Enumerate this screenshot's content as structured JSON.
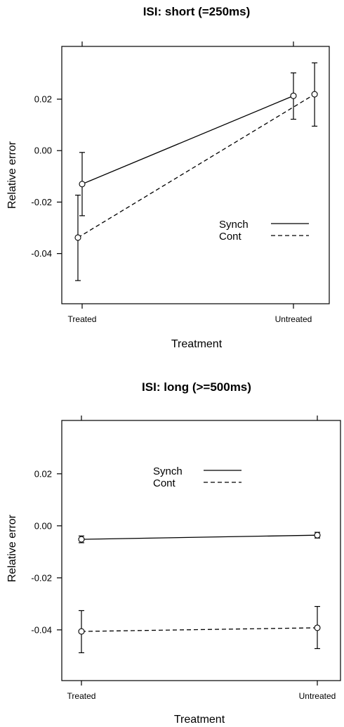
{
  "chart_data": [
    {
      "type": "line",
      "title": "ISI: short (=250ms)",
      "xlabel": "Treatment",
      "ylabel": "Relative error",
      "categories": [
        "Treated",
        "Untreated"
      ],
      "yticks": [
        "-0.04",
        "-0.02",
        "0.00",
        "0.02"
      ],
      "ylim": [
        -0.0595,
        0.0405
      ],
      "grid": false,
      "legend_position": "center-right",
      "series": [
        {
          "name": "Synch",
          "style": "solid",
          "x": [
            1.0,
            2.0
          ],
          "y": [
            -0.013,
            0.0213
          ],
          "ylow": [
            -0.0253,
            0.0122
          ],
          "yhigh": [
            -0.0007,
            0.0302
          ]
        },
        {
          "name": "Cont",
          "style": "dashed",
          "x": [
            0.98,
            2.1
          ],
          "y": [
            -0.0338,
            0.0219
          ],
          "ylow": [
            -0.0505,
            0.0095
          ],
          "yhigh": [
            -0.0173,
            0.0341
          ]
        }
      ]
    },
    {
      "type": "line",
      "title": "ISI: long (>=500ms)",
      "xlabel": "Treatment",
      "ylabel": "Relative error",
      "categories": [
        "Treated",
        "Untreated"
      ],
      "yticks": [
        "-0.04",
        "-0.02",
        "0.00",
        "0.02"
      ],
      "ylim": [
        -0.0595,
        0.0405
      ],
      "grid": false,
      "legend_position": "top-center",
      "series": [
        {
          "name": "Synch",
          "style": "solid",
          "x": [
            1.0,
            2.0
          ],
          "y": [
            -0.0052,
            -0.0036
          ],
          "ylow": [
            -0.0065,
            -0.0047
          ],
          "yhigh": [
            -0.0039,
            -0.0025
          ]
        },
        {
          "name": "Cont",
          "style": "dashed",
          "x": [
            1.0,
            2.0
          ],
          "y": [
            -0.0406,
            -0.0392
          ],
          "ylow": [
            -0.0488,
            -0.0472
          ],
          "yhigh": [
            -0.0326,
            -0.031
          ]
        }
      ]
    }
  ]
}
